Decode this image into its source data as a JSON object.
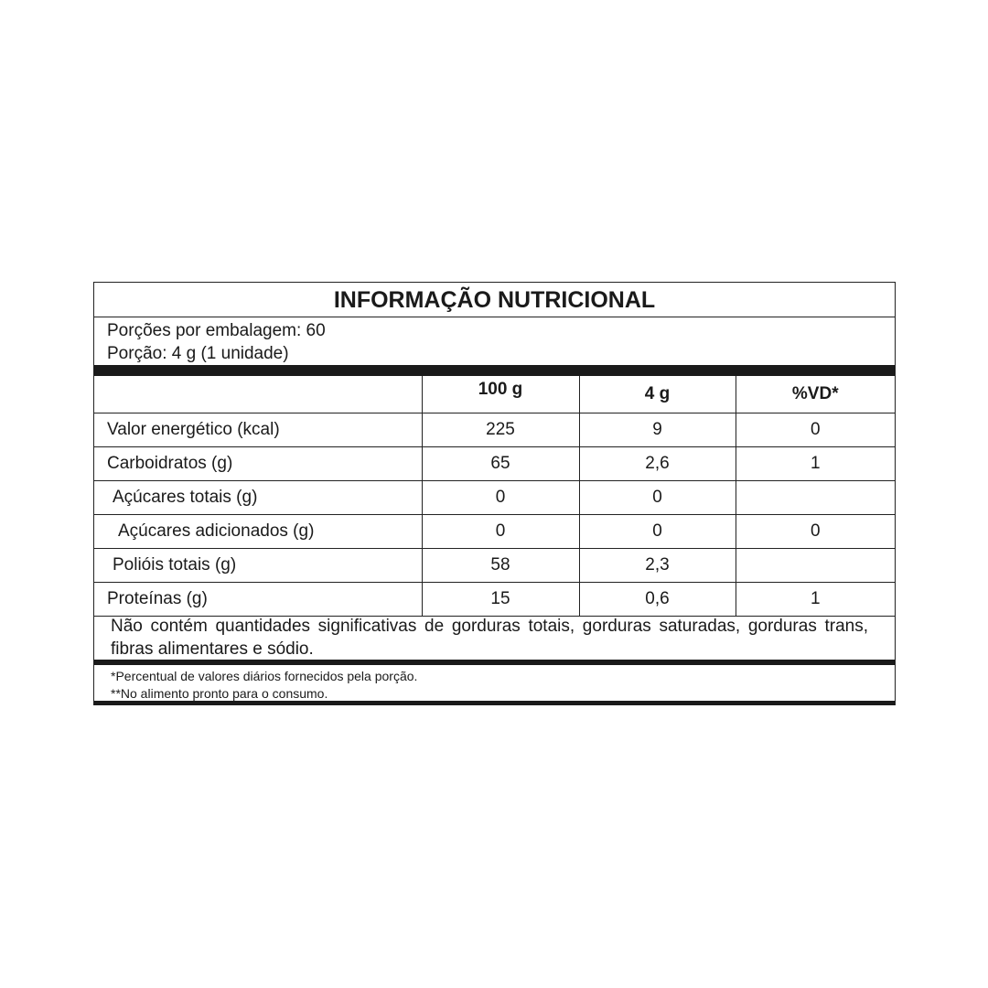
{
  "title": "INFORMAÇÃO NUTRICIONAL",
  "servings_per_package": "Porções por embalagem: 60",
  "serving_size": "Porção: 4 g (1 unidade)",
  "columns": [
    "",
    "100 g",
    "4 g",
    "%VD*"
  ],
  "rows": [
    {
      "name": "Valor energético (kcal)",
      "per100": "225",
      "perServing": "9",
      "vd": "0",
      "indent": 0
    },
    {
      "name": "Carboidratos (g)",
      "per100": "65",
      "perServing": "2,6",
      "vd": "1",
      "indent": 0
    },
    {
      "name": "Açúcares totais (g)",
      "per100": "0",
      "perServing": "0",
      "vd": "",
      "indent": 1
    },
    {
      "name": "Açúcares adicionados (g)",
      "per100": "0",
      "perServing": "0",
      "vd": "0",
      "indent": 2
    },
    {
      "name": "Polióis totais (g)",
      "per100": "58",
      "perServing": "2,3",
      "vd": "",
      "indent": 1
    },
    {
      "name": "Proteínas (g)",
      "per100": "15",
      "perServing": "0,6",
      "vd": "1",
      "indent": 0
    }
  ],
  "note": "Não contém quantidades significativas de gorduras totais, gorduras saturadas, gorduras trans, fibras alimentares e sódio.",
  "footnotes": [
    "*Percentual de valores diários fornecidos pela porção.",
    "**No alimento pronto para o consumo."
  ]
}
